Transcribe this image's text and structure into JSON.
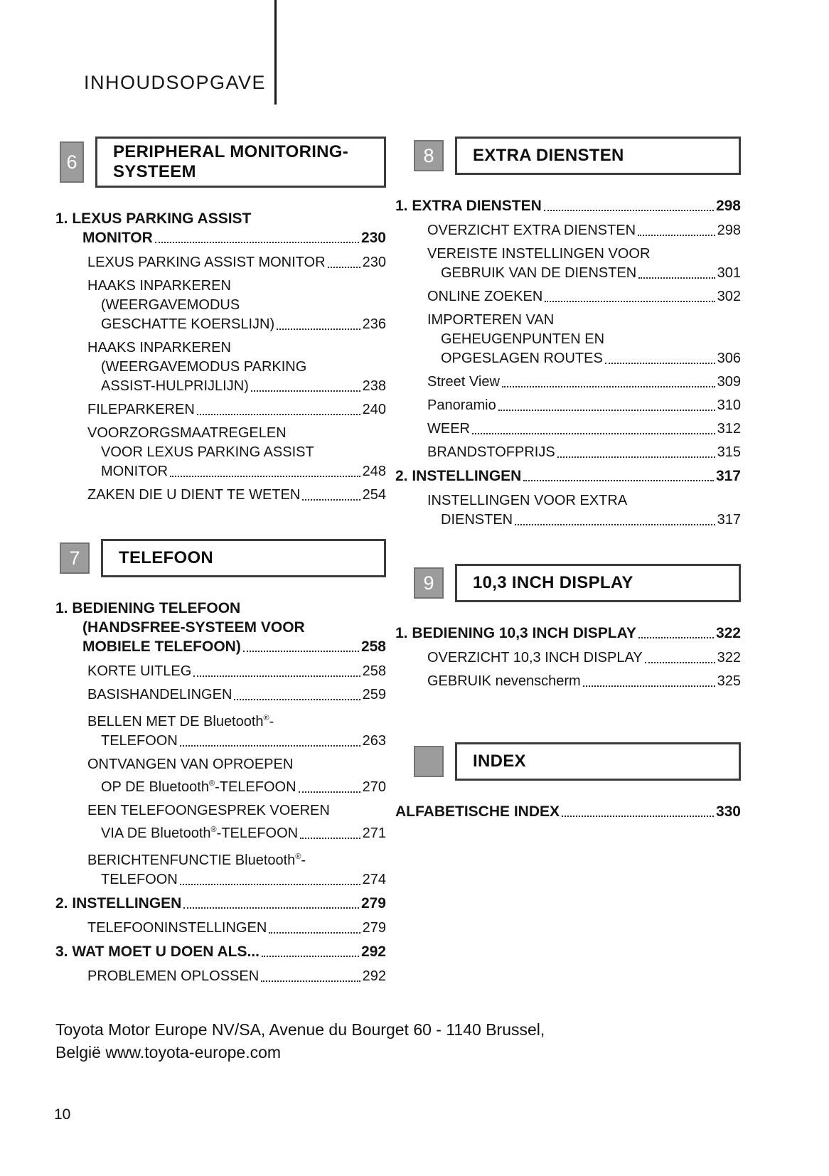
{
  "header": {
    "title": "INHOUDSOPGAVE"
  },
  "footer": {
    "line1": "Toyota Motor Europe NV/SA, Avenue du Bourget 60 - 1140 Brussel,",
    "line2": "België www.toyota-europe.com",
    "page_number": "10"
  },
  "colors": {
    "badge_bg": "#9c9c9c",
    "badge_border": "#747474",
    "box_border": "#3c3c3c",
    "leader_dots": "#2b2b2b",
    "text": "#111111"
  },
  "columns": [
    {
      "side": "left",
      "sections": [
        {
          "chapter": "6",
          "tall": true,
          "title_lines": [
            "PERIPHERAL MONITORING-",
            "SYSTEEM"
          ],
          "entries": [
            {
              "level": 1,
              "page": "230",
              "lines": [
                [
                  {
                    "t": "1. LEXUS PARKING ASSIST"
                  }
                ],
                [
                  {
                    "t": "MONITOR"
                  }
                ]
              ]
            },
            {
              "level": 2,
              "page": "230",
              "lines": [
                [
                  {
                    "t": "LEXUS PARKING ASSIST MONITOR"
                  }
                ]
              ]
            },
            {
              "level": 2,
              "page": "236",
              "lines": [
                [
                  {
                    "t": "HAAKS INPARKEREN"
                  }
                ],
                [
                  {
                    "t": "(WEERGAVEMODUS"
                  }
                ],
                [
                  {
                    "t": "GESCHATTE KOERSLIJN)"
                  }
                ]
              ]
            },
            {
              "level": 2,
              "page": "238",
              "lines": [
                [
                  {
                    "t": "HAAKS INPARKEREN"
                  }
                ],
                [
                  {
                    "t": "(WEERGAVEMODUS PARKING"
                  }
                ],
                [
                  {
                    "t": "ASSIST-HULPRIJLIJN)"
                  }
                ]
              ]
            },
            {
              "level": 2,
              "page": "240",
              "lines": [
                [
                  {
                    "t": "FILEPARKEREN"
                  }
                ]
              ]
            },
            {
              "level": 2,
              "page": "248",
              "lines": [
                [
                  {
                    "t": "VOORZORGSMAATREGELEN"
                  }
                ],
                [
                  {
                    "t": "VOOR LEXUS PARKING ASSIST"
                  }
                ],
                [
                  {
                    "t": "MONITOR"
                  }
                ]
              ]
            },
            {
              "level": 2,
              "page": "254",
              "lines": [
                [
                  {
                    "t": "ZAKEN DIE U DIENT TE WETEN"
                  }
                ]
              ]
            }
          ]
        },
        {
          "chapter": "7",
          "tall": false,
          "title_lines": [
            "TELEFOON"
          ],
          "entries": [
            {
              "level": 1,
              "page": "258",
              "lines": [
                [
                  {
                    "t": "1. BEDIENING TELEFOON"
                  }
                ],
                [
                  {
                    "t": "(HANDSFREE-SYSTEEM VOOR"
                  }
                ],
                [
                  {
                    "t": "MOBIELE TELEFOON)"
                  }
                ]
              ]
            },
            {
              "level": 2,
              "page": "258",
              "lines": [
                [
                  {
                    "t": "KORTE UITLEG"
                  }
                ]
              ]
            },
            {
              "level": 2,
              "page": "259",
              "lines": [
                [
                  {
                    "t": "BASISHANDELINGEN"
                  }
                ]
              ]
            },
            {
              "level": 2,
              "page": "263",
              "lines": [
                [
                  {
                    "t": "BELLEN MET DE "
                  },
                  {
                    "t": "Bluetooth"
                  },
                  {
                    "t": "®",
                    "s": "sup"
                  },
                  {
                    "t": "-"
                  }
                ],
                [
                  {
                    "t": "TELEFOON"
                  }
                ]
              ]
            },
            {
              "level": 2,
              "page": "270",
              "lines": [
                [
                  {
                    "t": "ONTVANGEN VAN OPROEPEN"
                  }
                ],
                [
                  {
                    "t": "OP DE "
                  },
                  {
                    "t": "Bluetooth"
                  },
                  {
                    "t": "®",
                    "s": "sup"
                  },
                  {
                    "t": "-TELEFOON"
                  }
                ]
              ]
            },
            {
              "level": 2,
              "page": "271",
              "lines": [
                [
                  {
                    "t": "EEN TELEFOONGESPREK VOEREN"
                  }
                ],
                [
                  {
                    "t": "VIA DE "
                  },
                  {
                    "t": "Bluetooth"
                  },
                  {
                    "t": "®",
                    "s": "sup"
                  },
                  {
                    "t": "-TELEFOON"
                  }
                ]
              ]
            },
            {
              "level": 2,
              "page": "274",
              "lines": [
                [
                  {
                    "t": "BERICHTENFUNCTIE "
                  },
                  {
                    "t": "Bluetooth"
                  },
                  {
                    "t": "®",
                    "s": "sup"
                  },
                  {
                    "t": "-"
                  }
                ],
                [
                  {
                    "t": "TELEFOON"
                  }
                ]
              ]
            },
            {
              "level": 1,
              "page": "279",
              "lines": [
                [
                  {
                    "t": "2. INSTELLINGEN"
                  }
                ]
              ]
            },
            {
              "level": 2,
              "page": "279",
              "lines": [
                [
                  {
                    "t": "TELEFOONINSTELLINGEN"
                  }
                ]
              ]
            },
            {
              "level": 1,
              "page": "292",
              "lines": [
                [
                  {
                    "t": "3. WAT MOET U DOEN ALS..."
                  }
                ]
              ]
            },
            {
              "level": 2,
              "page": "292",
              "lines": [
                [
                  {
                    "t": "PROBLEMEN OPLOSSEN"
                  }
                ]
              ]
            }
          ]
        }
      ]
    },
    {
      "side": "right",
      "sections": [
        {
          "chapter": "8",
          "tall": false,
          "title_lines": [
            "EXTRA DIENSTEN"
          ],
          "entries": [
            {
              "level": 1,
              "page": "298",
              "lines": [
                [
                  {
                    "t": "1. EXTRA DIENSTEN"
                  }
                ]
              ]
            },
            {
              "level": 2,
              "page": "298",
              "lines": [
                [
                  {
                    "t": "OVERZICHT EXTRA DIENSTEN"
                  }
                ]
              ]
            },
            {
              "level": 2,
              "page": "301",
              "lines": [
                [
                  {
                    "t": "VEREISTE INSTELLINGEN VOOR"
                  }
                ],
                [
                  {
                    "t": "GEBRUIK VAN DE DIENSTEN"
                  }
                ]
              ]
            },
            {
              "level": 2,
              "page": "302",
              "lines": [
                [
                  {
                    "t": "ONLINE ZOEKEN"
                  }
                ]
              ]
            },
            {
              "level": 2,
              "page": "306",
              "lines": [
                [
                  {
                    "t": "IMPORTEREN VAN"
                  }
                ],
                [
                  {
                    "t": "GEHEUGENPUNTEN EN"
                  }
                ],
                [
                  {
                    "t": "OPGESLAGEN ROUTES"
                  }
                ]
              ]
            },
            {
              "level": 2,
              "page": "309",
              "lines": [
                [
                  {
                    "t": "Street View"
                  }
                ]
              ]
            },
            {
              "level": 2,
              "page": "310",
              "lines": [
                [
                  {
                    "t": "Panoramio"
                  }
                ]
              ]
            },
            {
              "level": 2,
              "page": "312",
              "lines": [
                [
                  {
                    "t": "WEER"
                  }
                ]
              ]
            },
            {
              "level": 2,
              "page": "315",
              "lines": [
                [
                  {
                    "t": "BRANDSTOFPRIJS"
                  }
                ]
              ]
            },
            {
              "level": 1,
              "page": "317",
              "lines": [
                [
                  {
                    "t": "2. INSTELLINGEN"
                  }
                ]
              ]
            },
            {
              "level": 2,
              "page": "317",
              "lines": [
                [
                  {
                    "t": "INSTELLINGEN VOOR EXTRA"
                  }
                ],
                [
                  {
                    "t": "DIENSTEN"
                  }
                ]
              ]
            }
          ]
        },
        {
          "chapter": "9",
          "tall": false,
          "title_lines": [
            "10,3 INCH DISPLAY"
          ],
          "entries": [
            {
              "level": 1,
              "page": "322",
              "lines": [
                [
                  {
                    "t": "1. BEDIENING 10,3 INCH DISPLAY"
                  }
                ]
              ]
            },
            {
              "level": 2,
              "page": "322",
              "lines": [
                [
                  {
                    "t": "OVERZICHT 10,3 INCH DISPLAY"
                  }
                ]
              ]
            },
            {
              "level": 2,
              "page": "325",
              "lines": [
                [
                  {
                    "t": "GEBRUIK "
                  },
                  {
                    "t": "nevenscherm"
                  }
                ]
              ]
            }
          ]
        },
        {
          "chapter": "",
          "tall": false,
          "title_lines": [
            "INDEX"
          ],
          "entries": [
            {
              "level": 1,
              "page": "330",
              "lines": [
                [
                  {
                    "t": "ALFABETISCHE INDEX"
                  }
                ]
              ]
            }
          ]
        }
      ]
    }
  ]
}
